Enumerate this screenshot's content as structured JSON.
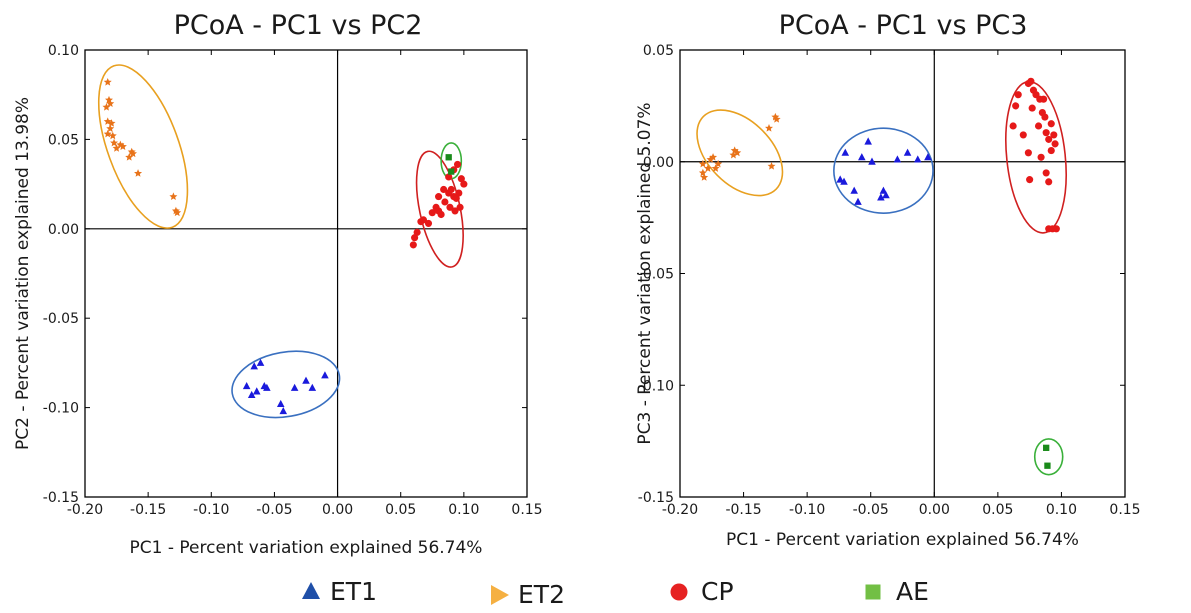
{
  "chart_data": [
    {
      "type": "scatter",
      "title": "PCoA - PC1 vs PC2",
      "xlabel": "PC1 - Percent variation explained 56.74%",
      "ylabel": "PC2 - Percent variation explained 13.98%",
      "xlim": [
        -0.2,
        0.15
      ],
      "ylim": [
        -0.15,
        0.1
      ],
      "xticks": [
        "-0.20",
        "-0.15",
        "-0.10",
        "-0.05",
        "0.00",
        "0.05",
        "0.10",
        "0.15"
      ],
      "yticks": [
        "0.10",
        "0.05",
        "0.00",
        "-0.05",
        "-0.10",
        "-0.15"
      ],
      "zero_lines": true,
      "series": [
        {
          "name": "ET1",
          "marker": "triangle",
          "color": "#1a1adc",
          "points": [
            [
              -0.072,
              -0.088
            ],
            [
              -0.068,
              -0.093
            ],
            [
              -0.064,
              -0.091
            ],
            [
              -0.066,
              -0.077
            ],
            [
              -0.061,
              -0.075
            ],
            [
              -0.058,
              -0.088
            ],
            [
              -0.056,
              -0.089
            ],
            [
              -0.045,
              -0.098
            ],
            [
              -0.043,
              -0.102
            ],
            [
              -0.034,
              -0.089
            ],
            [
              -0.025,
              -0.085
            ],
            [
              -0.02,
              -0.089
            ],
            [
              -0.01,
              -0.082
            ]
          ]
        },
        {
          "name": "ET2",
          "marker": "star",
          "color": "#e8731a",
          "points": [
            [
              -0.182,
              0.082
            ],
            [
              -0.181,
              0.072
            ],
            [
              -0.18,
              0.07
            ],
            [
              -0.182,
              0.06
            ],
            [
              -0.18,
              0.056
            ],
            [
              -0.178,
              0.052
            ],
            [
              -0.177,
              0.048
            ],
            [
              -0.175,
              0.045
            ],
            [
              -0.172,
              0.047
            ],
            [
              -0.17,
              0.046
            ],
            [
              -0.163,
              0.043
            ],
            [
              -0.162,
              0.042
            ],
            [
              -0.158,
              0.031
            ],
            [
              -0.13,
              0.018
            ],
            [
              -0.128,
              0.01
            ],
            [
              -0.127,
              0.009
            ],
            [
              -0.182,
              0.053
            ],
            [
              -0.179,
              0.059
            ],
            [
              -0.165,
              0.04
            ],
            [
              -0.183,
              0.068
            ]
          ]
        },
        {
          "name": "CP",
          "marker": "circle",
          "color": "#e61919",
          "points": [
            [
              0.06,
              -0.009
            ],
            [
              0.061,
              -0.005
            ],
            [
              0.063,
              -0.002
            ],
            [
              0.066,
              0.004
            ],
            [
              0.068,
              0.005
            ],
            [
              0.072,
              0.003
            ],
            [
              0.075,
              0.009
            ],
            [
              0.078,
              0.012
            ],
            [
              0.08,
              0.01
            ],
            [
              0.082,
              0.008
            ],
            [
              0.085,
              0.015
            ],
            [
              0.088,
              0.02
            ],
            [
              0.09,
              0.022
            ],
            [
              0.092,
              0.018
            ],
            [
              0.094,
              0.017
            ],
            [
              0.096,
              0.02
            ],
            [
              0.098,
              0.028
            ],
            [
              0.1,
              0.025
            ],
            [
              0.095,
              0.036
            ],
            [
              0.092,
              0.033
            ],
            [
              0.088,
              0.029
            ],
            [
              0.084,
              0.022
            ],
            [
              0.08,
              0.018
            ],
            [
              0.097,
              0.012
            ],
            [
              0.089,
              0.012
            ],
            [
              0.093,
              0.01
            ]
          ]
        },
        {
          "name": "AE",
          "marker": "square",
          "color": "#1a8a1a",
          "points": [
            [
              0.088,
              0.04
            ],
            [
              0.09,
              0.032
            ]
          ]
        }
      ],
      "ellipses": [
        {
          "color": "#e8a020",
          "cx": -0.154,
          "cy": 0.046,
          "rx": 0.028,
          "ry": 0.048,
          "angle_deg": -20
        },
        {
          "color": "#3a70c0",
          "cx": -0.041,
          "cy": -0.087,
          "rx": 0.043,
          "ry": 0.018,
          "angle_deg": -10
        },
        {
          "color": "#d02020",
          "cx": 0.081,
          "cy": 0.011,
          "rx": 0.016,
          "ry": 0.033,
          "angle_deg": -12
        },
        {
          "color": "#3ab03a",
          "cx": 0.09,
          "cy": 0.038,
          "rx": 0.008,
          "ry": 0.01,
          "angle_deg": 0
        }
      ]
    },
    {
      "type": "scatter",
      "title": "PCoA - PC1 vs PC3",
      "xlabel": "PC1 - Percent variation explained 56.74%",
      "ylabel": "PC3 - Percent variation explained 5.07%",
      "xlim": [
        -0.2,
        0.15
      ],
      "ylim": [
        -0.15,
        0.05
      ],
      "xticks": [
        "-0.20",
        "-0.15",
        "-0.10",
        "-0.05",
        "0.00",
        "0.05",
        "0.10",
        "0.15"
      ],
      "yticks": [
        "0.05",
        "0.00",
        "-0.05",
        "-0.10",
        "-0.15"
      ],
      "zero_lines": true,
      "series": [
        {
          "name": "ET1",
          "marker": "triangle",
          "color": "#1a1adc",
          "points": [
            [
              -0.074,
              -0.008
            ],
            [
              -0.071,
              -0.009
            ],
            [
              -0.07,
              0.004
            ],
            [
              -0.063,
              -0.013
            ],
            [
              -0.06,
              -0.018
            ],
            [
              -0.057,
              0.002
            ],
            [
              -0.052,
              0.009
            ],
            [
              -0.049,
              0.0
            ],
            [
              -0.042,
              -0.016
            ],
            [
              -0.04,
              -0.013
            ],
            [
              -0.038,
              -0.015
            ],
            [
              -0.029,
              0.001
            ],
            [
              -0.021,
              0.004
            ],
            [
              -0.013,
              0.001
            ],
            [
              -0.005,
              0.002
            ]
          ]
        },
        {
          "name": "ET2",
          "marker": "star",
          "color": "#e8731a",
          "points": [
            [
              -0.182,
              -0.001
            ],
            [
              -0.181,
              -0.007
            ],
            [
              -0.178,
              -0.003
            ],
            [
              -0.176,
              0.001
            ],
            [
              -0.174,
              0.002
            ],
            [
              -0.172,
              -0.003
            ],
            [
              -0.17,
              -0.001
            ],
            [
              -0.158,
              0.003
            ],
            [
              -0.157,
              0.005
            ],
            [
              -0.155,
              0.004
            ],
            [
              -0.13,
              0.015
            ],
            [
              -0.125,
              0.02
            ],
            [
              -0.124,
              0.019
            ],
            [
              -0.128,
              -0.002
            ],
            [
              -0.182,
              -0.005
            ]
          ]
        },
        {
          "name": "CP",
          "marker": "circle",
          "color": "#e61919",
          "points": [
            [
              0.062,
              0.016
            ],
            [
              0.064,
              0.025
            ],
            [
              0.066,
              0.03
            ],
            [
              0.07,
              0.012
            ],
            [
              0.074,
              0.035
            ],
            [
              0.076,
              0.036
            ],
            [
              0.078,
              0.032
            ],
            [
              0.08,
              0.03
            ],
            [
              0.083,
              0.028
            ],
            [
              0.085,
              0.022
            ],
            [
              0.087,
              0.02
            ],
            [
              0.088,
              0.013
            ],
            [
              0.09,
              0.01
            ],
            [
              0.092,
              0.017
            ],
            [
              0.094,
              0.012
            ],
            [
              0.095,
              0.008
            ],
            [
              0.077,
              0.024
            ],
            [
              0.075,
              -0.008
            ],
            [
              0.084,
              0.002
            ],
            [
              0.088,
              -0.005
            ],
            [
              0.092,
              0.005
            ],
            [
              0.09,
              -0.009
            ],
            [
              0.09,
              -0.03
            ],
            [
              0.093,
              -0.03
            ],
            [
              0.096,
              -0.03
            ],
            [
              0.082,
              0.016
            ],
            [
              0.086,
              0.028
            ],
            [
              0.074,
              0.004
            ]
          ]
        },
        {
          "name": "AE",
          "marker": "square",
          "color": "#1a8a1a",
          "points": [
            [
              0.088,
              -0.128
            ],
            [
              0.089,
              -0.136
            ]
          ]
        }
      ],
      "ellipses": [
        {
          "color": "#e8a020",
          "cx": -0.153,
          "cy": 0.004,
          "rx": 0.025,
          "ry": 0.023,
          "angle_deg": -45
        },
        {
          "color": "#3a70c0",
          "cx": -0.04,
          "cy": -0.004,
          "rx": 0.039,
          "ry": 0.019,
          "angle_deg": 0
        },
        {
          "color": "#d02020",
          "cx": 0.08,
          "cy": 0.002,
          "rx": 0.023,
          "ry": 0.034,
          "angle_deg": -6
        },
        {
          "color": "#3ab03a",
          "cx": 0.09,
          "cy": -0.132,
          "rx": 0.011,
          "ry": 0.008,
          "angle_deg": 0
        }
      ]
    }
  ],
  "legend": [
    {
      "label": "ET1",
      "marker": "triangle",
      "color": "#1f4fa8"
    },
    {
      "label": "ET2",
      "marker": "right-triangle",
      "color": "#f5b042"
    },
    {
      "label": "CP",
      "marker": "circle",
      "color": "#e62222"
    },
    {
      "label": "AE",
      "marker": "square",
      "color": "#72bf44"
    }
  ]
}
